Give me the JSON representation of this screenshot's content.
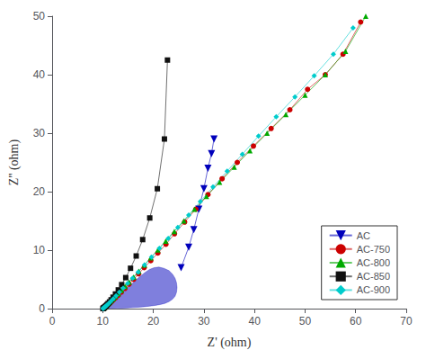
{
  "chart_data": {
    "type": "line",
    "xlabel": "Z' (ohm)",
    "ylabel": "Z'' (ohm)",
    "xlim": [
      0,
      70
    ],
    "ylim": [
      0,
      50
    ],
    "xticks": [
      0,
      10,
      20,
      30,
      40,
      50,
      60,
      70
    ],
    "yticks": [
      0,
      10,
      20,
      30,
      40,
      50
    ],
    "grid": false,
    "legend": "lower right",
    "series": [
      {
        "name": "AC",
        "type": "line",
        "color": "#0000bb",
        "marker": "triangle_down",
        "x": [
          25.5,
          27.0,
          28.0,
          29.0,
          30.0,
          30.8,
          31.5,
          32.0
        ],
        "values": [
          7.0,
          10.5,
          13.5,
          17.0,
          20.5,
          24.0,
          26.5,
          29.0
        ]
      },
      {
        "name": "AC",
        "type": "area",
        "color": "#0000bb",
        "marker": "none",
        "x": [
          10.05,
          10.08,
          10.12,
          10.17,
          10.23,
          10.3,
          10.38,
          10.48,
          10.6,
          10.73,
          10.88,
          11.05,
          11.25,
          11.47,
          11.72,
          12.0,
          12.3,
          12.64,
          13.0,
          13.4,
          13.85,
          14.35,
          14.9,
          15.5,
          16.15,
          16.85,
          17.6,
          18.4,
          19.25,
          20.15,
          21.1,
          22.1,
          23.1,
          23.8,
          24.3,
          24.6,
          24.7,
          24.6,
          24.3,
          23.8,
          23.1,
          22.3,
          21.4,
          20.4,
          19.3,
          18.2,
          17.1,
          16.0,
          14.9,
          13.9,
          12.9,
          12.0,
          11.2,
          10.5,
          10.0
        ],
        "values": [
          0.02,
          0.04,
          0.07,
          0.1,
          0.14,
          0.19,
          0.25,
          0.32,
          0.4,
          0.49,
          0.6,
          0.72,
          0.86,
          1.02,
          1.2,
          1.4,
          1.62,
          1.87,
          2.15,
          2.46,
          2.8,
          3.18,
          3.6,
          4.05,
          4.55,
          5.1,
          5.65,
          6.2,
          6.7,
          7.0,
          7.1,
          6.9,
          6.5,
          5.9,
          5.2,
          4.4,
          3.6,
          2.8,
          2.1,
          1.6,
          1.2,
          0.9,
          0.7,
          0.55,
          0.42,
          0.32,
          0.24,
          0.18,
          0.13,
          0.09,
          0.06,
          0.04,
          0.03,
          0.02,
          0.01
        ]
      },
      {
        "name": "AC-750",
        "type": "line",
        "color": "#cc0000",
        "marker": "circle",
        "x": [
          10.05,
          10.12,
          10.22,
          10.35,
          10.52,
          10.72,
          10.97,
          11.27,
          11.62,
          12.03,
          12.5,
          13.05,
          13.68,
          14.4,
          15.2,
          16.1,
          17.1,
          18.2,
          19.5,
          20.9,
          22.5,
          24.2,
          26.2,
          28.4,
          30.8,
          33.6,
          36.6,
          39.8,
          43.3,
          47.0,
          50.5,
          54.0,
          57.5,
          61.0
        ],
        "values": [
          0.02,
          0.05,
          0.1,
          0.18,
          0.28,
          0.42,
          0.6,
          0.82,
          1.1,
          1.43,
          1.82,
          2.28,
          2.82,
          3.45,
          4.18,
          5.0,
          5.95,
          7.0,
          8.2,
          9.5,
          11.0,
          12.8,
          14.8,
          17.0,
          19.5,
          22.2,
          25.0,
          27.8,
          30.8,
          34.0,
          37.5,
          40.0,
          43.5,
          49.0
        ]
      },
      {
        "name": "AC-800",
        "type": "line",
        "color": "#00aa00",
        "marker": "triangle",
        "x": [
          10.05,
          10.1,
          10.18,
          10.28,
          10.42,
          10.59,
          10.8,
          11.05,
          11.35,
          11.7,
          12.1,
          12.57,
          13.1,
          13.72,
          14.42,
          15.22,
          16.12,
          17.12,
          18.25,
          19.5,
          20.9,
          22.45,
          24.15,
          26.05,
          28.15,
          30.5,
          33.1,
          36.0,
          39.1,
          42.5,
          46.2,
          50.0,
          54.0,
          58.0,
          62.0
        ],
        "values": [
          0.02,
          0.05,
          0.1,
          0.17,
          0.27,
          0.4,
          0.57,
          0.78,
          1.03,
          1.33,
          1.68,
          2.1,
          2.58,
          3.15,
          3.8,
          4.55,
          5.4,
          6.38,
          7.48,
          8.7,
          10.05,
          11.55,
          13.2,
          15.0,
          17.0,
          19.2,
          21.6,
          24.2,
          27.0,
          30.0,
          33.2,
          36.5,
          40.0,
          44.0,
          50.0
        ]
      },
      {
        "name": "AC-850",
        "type": "line",
        "color": "#111111",
        "marker": "square",
        "x": [
          10.05,
          10.1,
          10.15,
          10.22,
          10.3,
          10.4,
          10.52,
          10.67,
          10.85,
          11.07,
          11.34,
          11.66,
          12.05,
          12.52,
          13.08,
          13.75,
          14.55,
          15.5,
          16.62,
          17.9,
          19.3,
          20.8,
          22.2,
          22.8
        ],
        "values": [
          0.02,
          0.05,
          0.08,
          0.13,
          0.19,
          0.27,
          0.37,
          0.5,
          0.67,
          0.88,
          1.15,
          1.5,
          1.95,
          2.5,
          3.2,
          4.1,
          5.3,
          6.9,
          9.0,
          11.8,
          15.5,
          20.5,
          29.0,
          42.5
        ]
      },
      {
        "name": "AC-900",
        "type": "line",
        "color": "#00cccc",
        "marker": "diamond",
        "x": [
          10.05,
          10.1,
          10.18,
          10.3,
          10.46,
          10.66,
          10.92,
          11.24,
          11.63,
          12.1,
          12.65,
          13.3,
          14.05,
          14.92,
          15.9,
          17.0,
          18.25,
          19.65,
          21.2,
          22.95,
          24.85,
          27.0,
          29.3,
          31.8,
          34.6,
          37.6,
          40.8,
          44.3,
          48.0,
          51.8,
          55.6,
          59.5
        ],
        "values": [
          0.02,
          0.05,
          0.1,
          0.18,
          0.3,
          0.46,
          0.67,
          0.94,
          1.28,
          1.7,
          2.2,
          2.8,
          3.5,
          4.3,
          5.2,
          6.25,
          7.45,
          8.8,
          10.3,
          12.0,
          13.9,
          16.0,
          18.3,
          20.8,
          23.5,
          26.4,
          29.5,
          32.8,
          36.2,
          39.8,
          43.5,
          48.0
        ]
      }
    ]
  }
}
